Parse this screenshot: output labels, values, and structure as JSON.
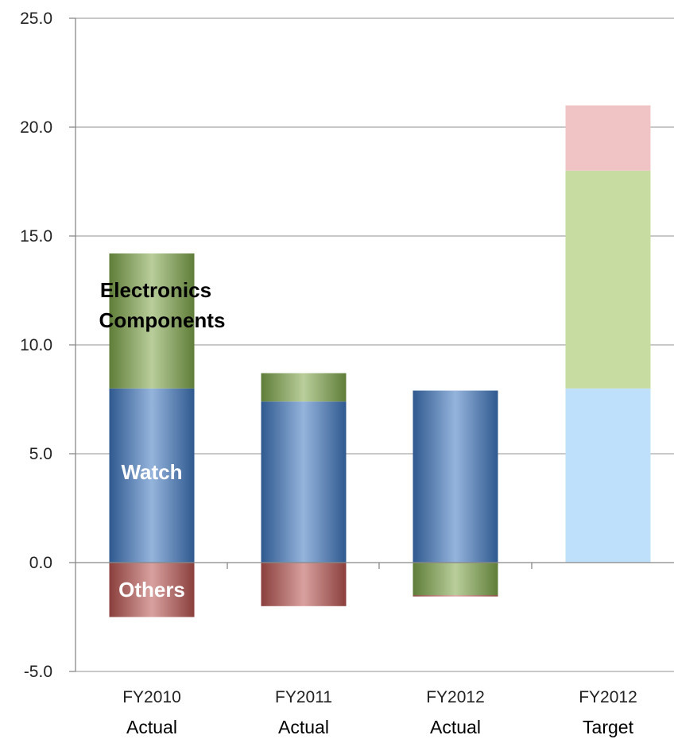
{
  "chart_data": {
    "type": "bar",
    "stacked": true,
    "categories": [
      {
        "line1": "FY2010",
        "line2": "Actual"
      },
      {
        "line1": "FY2011",
        "line2": "Actual"
      },
      {
        "line1": "FY2012",
        "line2": "Actual"
      },
      {
        "line1": "FY2012",
        "line2": "Target"
      }
    ],
    "series": [
      {
        "key": "watch",
        "values": [
          8.0,
          7.4,
          7.9,
          8.0
        ],
        "color": "#3f76bf"
      },
      {
        "key": "electronics",
        "values": [
          6.2,
          1.3,
          -1.5,
          10.0
        ],
        "color": "#7fa64a"
      },
      {
        "key": "others",
        "values": [
          -2.5,
          -2.0,
          -0.05,
          3.0
        ],
        "color": "#b85450"
      }
    ],
    "target_colors": {
      "watch": "#bfe0fb",
      "electronics": "#c6dca0",
      "others": "#f0c4c4"
    },
    "annotations": {
      "electronics_line1": "Electronics",
      "electronics_line2": "Components",
      "watch": "Watch",
      "others": "Others"
    },
    "yticks": [
      "25.0",
      "20.0",
      "15.0",
      "10.0",
      "5.0",
      "0.0",
      "-5.0"
    ],
    "ytick_values": [
      25,
      20,
      15,
      10,
      5,
      0,
      -5
    ],
    "ylim": [
      -5,
      25
    ],
    "grid": true,
    "negative_tick_color": "#cc0000"
  }
}
